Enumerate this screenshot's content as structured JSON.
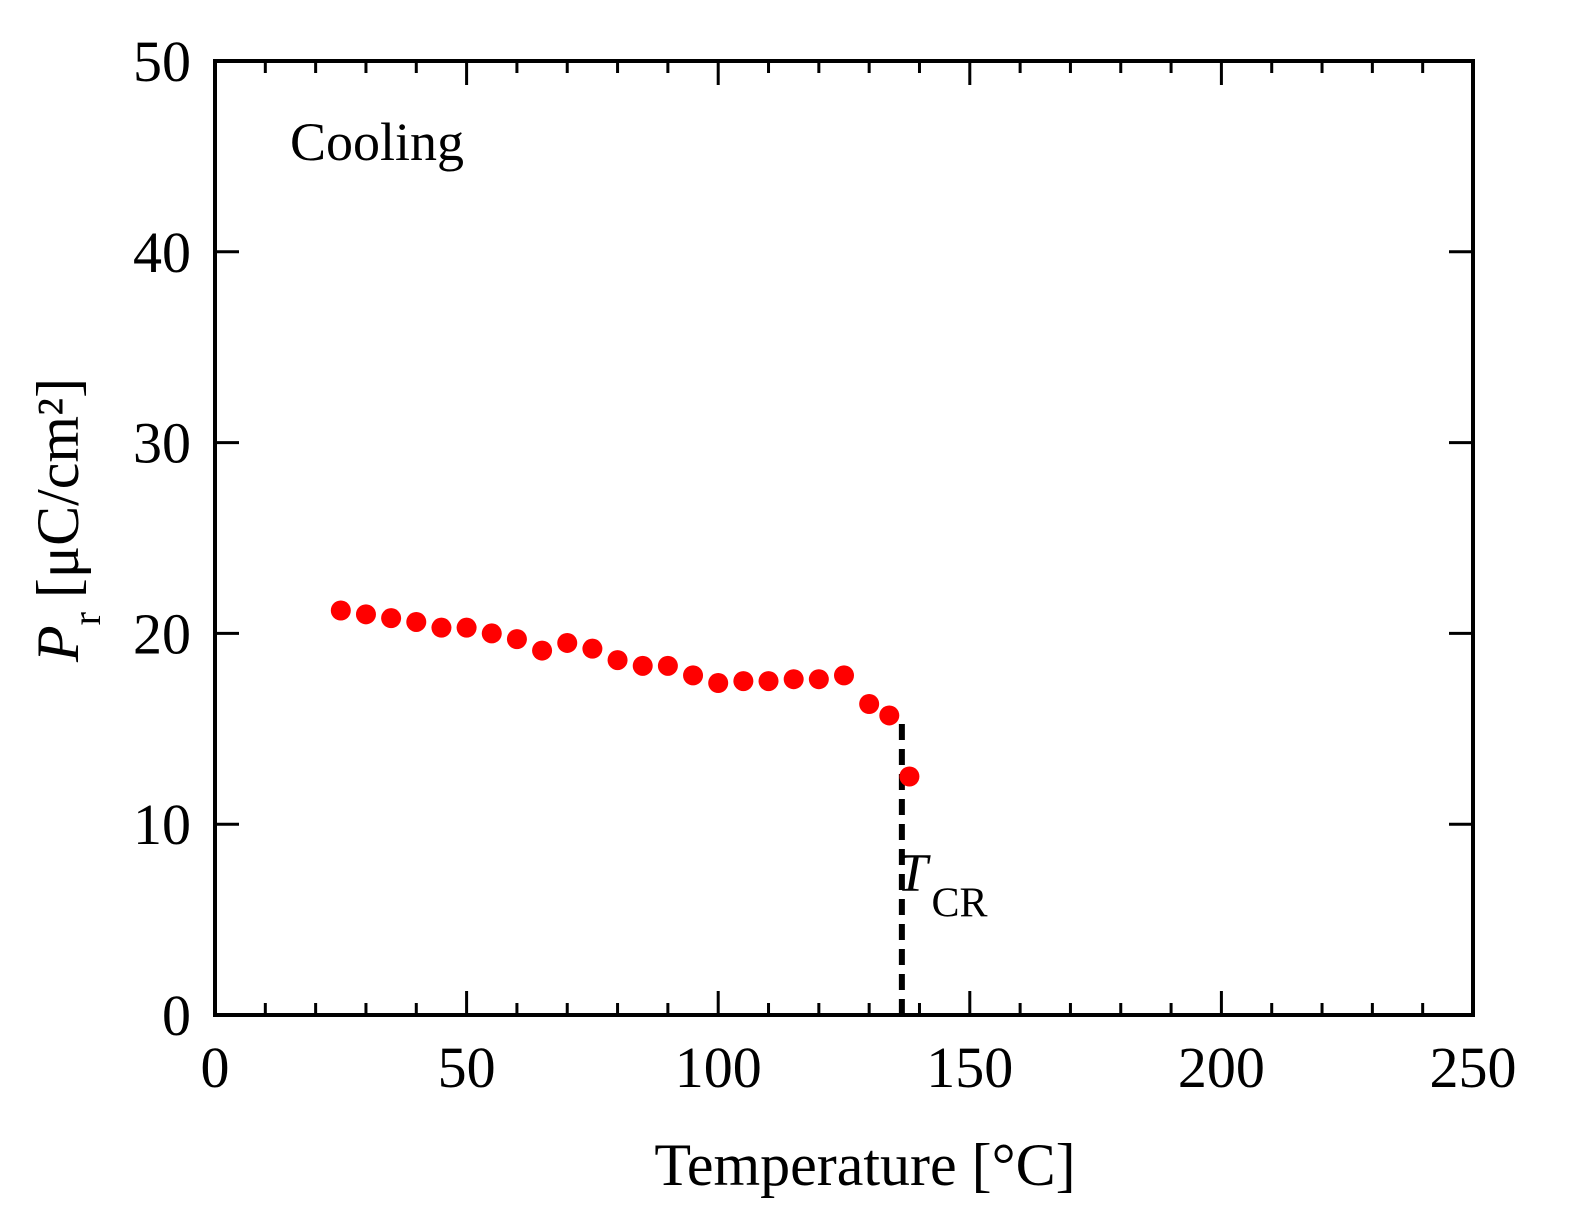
{
  "chart_data": {
    "type": "scatter",
    "title": "",
    "xlabel": "Temperature [°C]",
    "ylabel": {
      "symbol": "P",
      "subscript": "r",
      "units": "[μC/cm²]"
    },
    "xlim": [
      0,
      250
    ],
    "ylim": [
      0,
      50
    ],
    "x_ticks": [
      0,
      50,
      100,
      150,
      200,
      250
    ],
    "y_ticks": [
      0,
      10,
      20,
      30,
      40,
      50
    ],
    "x_minor_step": 10,
    "y_minor_step": 10,
    "grid": false,
    "series": [
      {
        "name": "Cooling",
        "color": "#ff0000",
        "marker": "circle",
        "x": [
          25,
          30,
          35,
          40,
          45,
          50,
          55,
          60,
          65,
          70,
          75,
          80,
          85,
          90,
          95,
          100,
          105,
          110,
          115,
          120,
          125,
          130,
          134,
          138
        ],
        "y": [
          21.2,
          21.0,
          20.8,
          20.6,
          20.3,
          20.3,
          20.0,
          19.7,
          19.1,
          19.5,
          19.2,
          18.6,
          18.3,
          18.3,
          17.8,
          17.4,
          17.5,
          17.5,
          17.6,
          17.6,
          17.8,
          16.3,
          15.7,
          12.5
        ]
      }
    ],
    "annotations": [
      {
        "text": "Cooling",
        "position": "top-left"
      },
      {
        "type": "vertical-dashed-line",
        "x": 136.5,
        "y_from": 0,
        "y_to": 15.7,
        "color": "#000000"
      },
      {
        "symbol": "T",
        "subscript": "CR",
        "x": 140,
        "y": 6
      }
    ]
  }
}
